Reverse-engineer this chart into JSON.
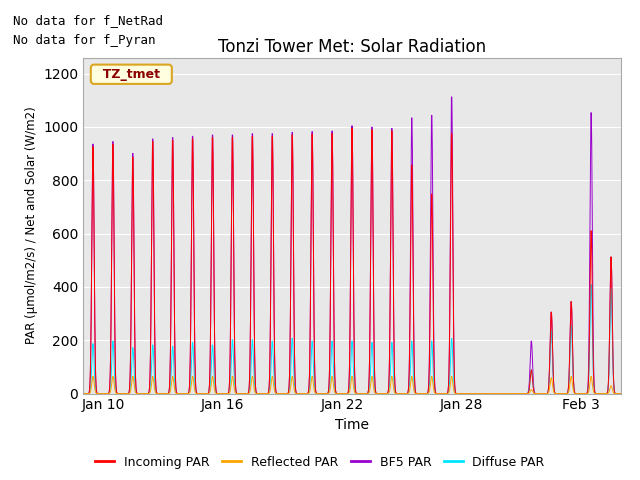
{
  "title": "Tonzi Tower Met: Solar Radiation",
  "ylabel": "PAR (μmol/m2/s) / Net and Solar (W/m2)",
  "xlabel": "Time",
  "text_no_data": [
    "No data for f_NetRad",
    "No data for f_Pyran"
  ],
  "legend_label": "TZ_tmet",
  "legend_entries": [
    "Incoming PAR",
    "Reflected PAR",
    "BF5 PAR",
    "Diffuse PAR"
  ],
  "legend_colors": [
    "#ff0000",
    "#ffa500",
    "#9900cc",
    "#00e5ff"
  ],
  "plot_bg_color": "#e8e8e8",
  "ylim": [
    0,
    1260
  ],
  "yticks": [
    0,
    200,
    400,
    600,
    800,
    1000,
    1200
  ],
  "tick_positions": [
    1,
    7,
    13,
    19,
    25
  ],
  "tick_labels": [
    "Jan 10",
    "Jan 16",
    "Jan 22",
    "Jan 28",
    "Feb 3"
  ],
  "total_days": 27,
  "title_fontsize": 12,
  "text_fontsize": 9,
  "axis_fontsize": 10
}
